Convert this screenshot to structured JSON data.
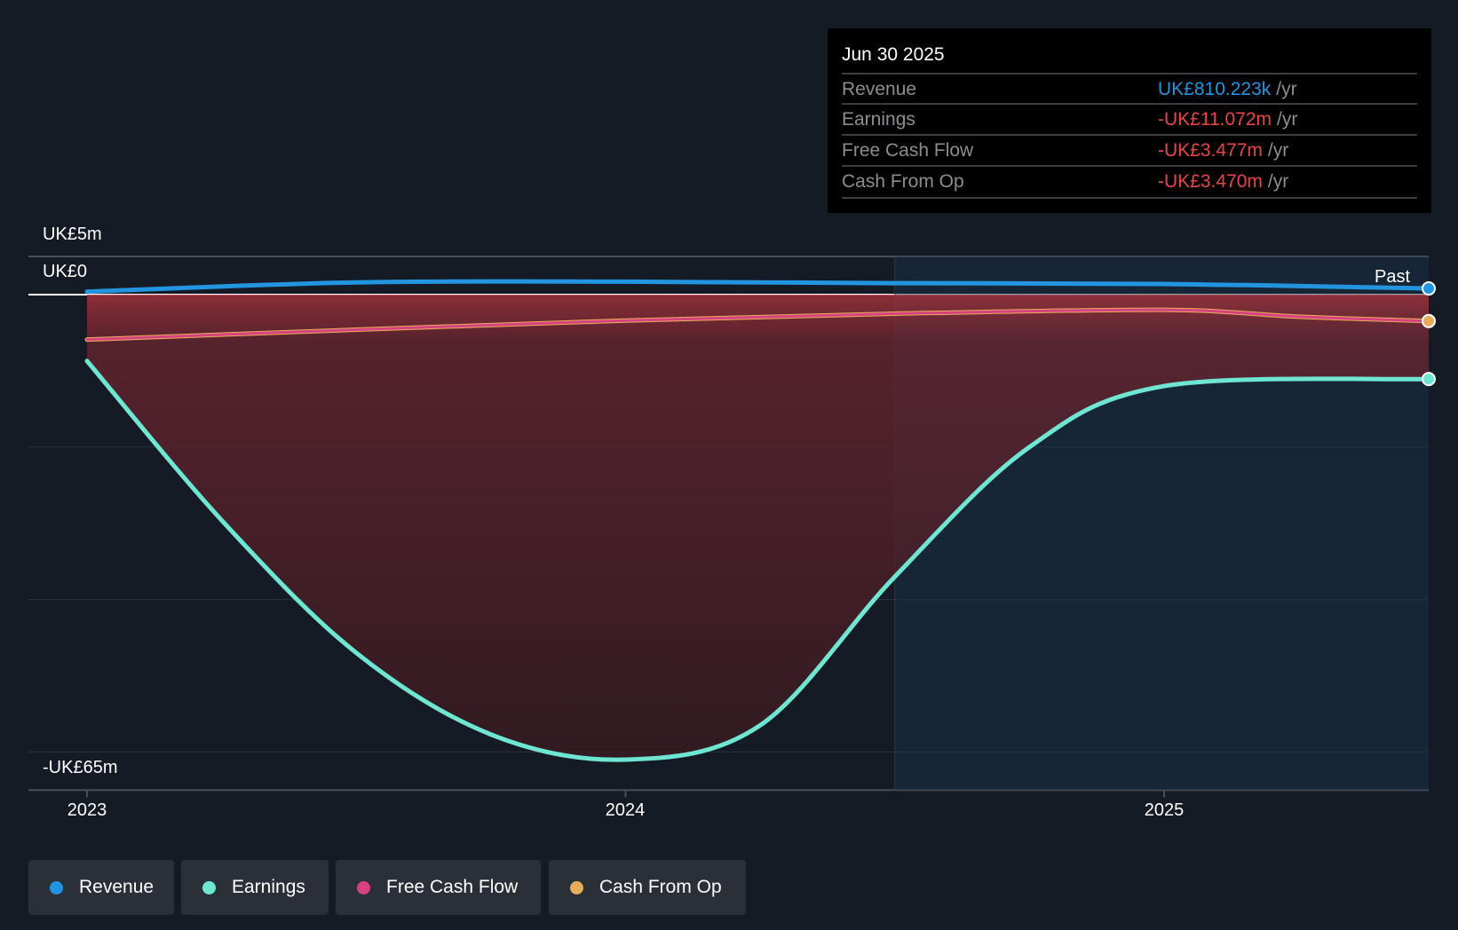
{
  "tooltip": {
    "date": "Jun 30 2025",
    "rows": [
      {
        "label": "Revenue",
        "value": "UK£810.223k",
        "unit": "/yr",
        "color": "#2394df"
      },
      {
        "label": "Earnings",
        "value": "-UK£11.072m",
        "unit": "/yr",
        "color": "#e84646"
      },
      {
        "label": "Free Cash Flow",
        "value": "-UK£3.477m",
        "unit": "/yr",
        "color": "#e84646"
      },
      {
        "label": "Cash From Op",
        "value": "-UK£3.470m",
        "unit": "/yr",
        "color": "#e84646"
      }
    ]
  },
  "legend": [
    {
      "label": "Revenue",
      "color": "#2394df"
    },
    {
      "label": "Earnings",
      "color": "#6ee6d2"
    },
    {
      "label": "Free Cash Flow",
      "color": "#d6417f"
    },
    {
      "label": "Cash From Op",
      "color": "#e8ad5a"
    }
  ],
  "chart_data": {
    "type": "line",
    "title": "",
    "xlabel": "",
    "ylabel": "",
    "y_tick_labels": [
      "UK£5m",
      "UK£0",
      "-UK£65m"
    ],
    "x_tick_labels": [
      "2023",
      "2024",
      "2025"
    ],
    "x_ticks": [
      2023,
      2024,
      2025
    ],
    "xlim": [
      2023.0,
      2025.5
    ],
    "ylim": [
      -65,
      5
    ],
    "region_label": "Past",
    "past_region_start": 2024.5,
    "units": "UK£m",
    "series": [
      {
        "name": "Revenue",
        "color": "#2394df",
        "x": [
          2023.0,
          2023.5,
          2024.0,
          2024.5,
          2025.0,
          2025.5
        ],
        "y": [
          0.4,
          1.6,
          1.7,
          1.5,
          1.4,
          0.81
        ]
      },
      {
        "name": "Earnings",
        "color": "#6ee6d2",
        "x": [
          2023.0,
          2023.25,
          2023.5,
          2023.75,
          2024.0,
          2024.25,
          2024.5,
          2024.75,
          2025.0,
          2025.5
        ],
        "y": [
          -8.7,
          -29.6,
          -47,
          -57.7,
          -61,
          -56.5,
          -37,
          -20,
          -12,
          -11.072
        ]
      },
      {
        "name": "Free Cash Flow",
        "color": "#d6417f",
        "x": [
          2023.0,
          2023.5,
          2024.0,
          2024.5,
          2025.0,
          2025.25,
          2025.5
        ],
        "y": [
          -5.9,
          -4.6,
          -3.4,
          -2.5,
          -2.0,
          -2.9,
          -3.477
        ]
      },
      {
        "name": "Cash From Op",
        "color": "#e8ad5a",
        "x": [
          2023.0,
          2023.5,
          2024.0,
          2024.5,
          2025.0,
          2025.25,
          2025.5
        ],
        "y": [
          -5.9,
          -4.6,
          -3.4,
          -2.5,
          -2.0,
          -2.9,
          -3.47
        ]
      }
    ]
  }
}
